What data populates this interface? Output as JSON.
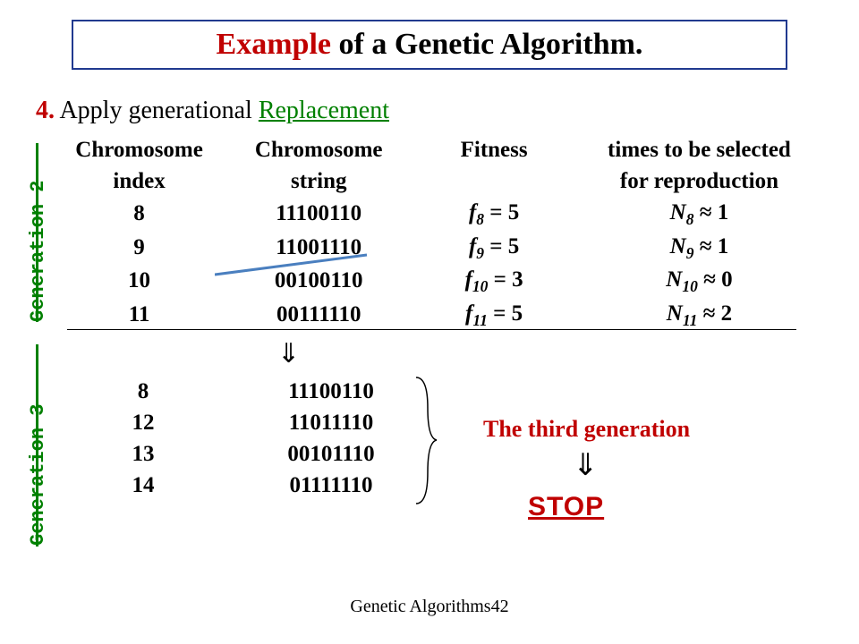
{
  "title": {
    "highlight": "Example",
    "rest": " of a Genetic Algorithm."
  },
  "step": {
    "num": "4.",
    "pre": " Apply generational ",
    "repl": "Replacement"
  },
  "gen_labels": {
    "g2": "Generation 2",
    "g3": "Generation 3"
  },
  "headers": {
    "idx1": "Chromosome",
    "idx2": "index",
    "str1": "Chromosome",
    "str2": "string",
    "fit": "Fitness",
    "sel1": "times to be selected",
    "sel2": "for reproduction"
  },
  "gen2_rows": [
    {
      "idx": "8",
      "str": "11100110",
      "f_sub": "8",
      "f_val": "5",
      "n_sub": "8",
      "n_val": "1"
    },
    {
      "idx": "9",
      "str": "11001110",
      "f_sub": "9",
      "f_val": "5",
      "n_sub": "9",
      "n_val": "1"
    },
    {
      "idx": "10",
      "str": "00100110",
      "f_sub": "10",
      "f_val": "3",
      "n_sub": "10",
      "n_val": "0"
    },
    {
      "idx": "11",
      "str": "00111110",
      "f_sub": "11",
      "f_val": "5",
      "n_sub": "11",
      "n_val": "2"
    }
  ],
  "gen3_rows": [
    {
      "idx": "8",
      "str": "11100110"
    },
    {
      "idx": "12",
      "str": "11011110"
    },
    {
      "idx": "13",
      "str": "00101110"
    },
    {
      "idx": "14",
      "str": "01111110"
    }
  ],
  "third_gen_label": "The third generation",
  "stop_label": "STOP",
  "arrow_glyph": "⇓",
  "approx_glyph": "≈",
  "strike": {
    "color": "#4a7fbf",
    "width": 3
  },
  "footer": {
    "text": "Genetic Algorithms",
    "page": "42"
  },
  "colors": {
    "accent_red": "#c00000",
    "accent_green": "#008000",
    "border_blue": "#213a8f"
  }
}
